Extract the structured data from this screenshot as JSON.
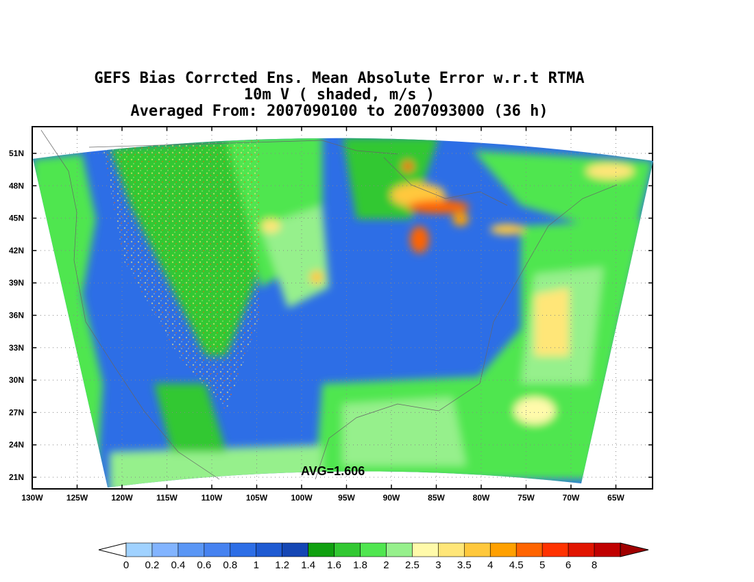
{
  "title": {
    "line1": "GEFS Bias Corrcted Ens. Mean Absolute Error w.r.t RTMA",
    "line2": "10m V ( shaded, m/s )",
    "line3": "Averaged From: 2007090100 to 2007093000 (36 h)"
  },
  "avg_label": "AVG=1.606",
  "axes": {
    "lat_ticks": [
      "51N",
      "48N",
      "45N",
      "42N",
      "39N",
      "36N",
      "33N",
      "30N",
      "27N",
      "24N",
      "21N"
    ],
    "lon_ticks": [
      "130W",
      "125W",
      "120W",
      "115W",
      "110W",
      "105W",
      "100W",
      "95W",
      "90W",
      "85W",
      "80W",
      "75W",
      "70W",
      "65W"
    ]
  },
  "colorbar": {
    "labels": [
      "0",
      "0.2",
      "0.4",
      "0.6",
      "0.8",
      "1",
      "1.2",
      "1.4",
      "1.6",
      "1.8",
      "2",
      "2.5",
      "3",
      "3.5",
      "4",
      "4.5",
      "5",
      "6",
      "8"
    ],
    "colors": [
      "#a0d2ff",
      "#82b4ff",
      "#5a96f5",
      "#4682f0",
      "#2d6ee6",
      "#1e5ad2",
      "#1446b4",
      "#10a010",
      "#32c832",
      "#50e650",
      "#96f08c",
      "#fffaaa",
      "#ffe678",
      "#ffc83c",
      "#ffa000",
      "#ff6400",
      "#ff3200",
      "#e11400",
      "#c00000"
    ],
    "under_color": "#ffffff",
    "over_color": "#a00000"
  },
  "colors": {
    "domain_blue": "#2d6ee6",
    "domain_green": "#50e650",
    "frame": "#000000"
  }
}
